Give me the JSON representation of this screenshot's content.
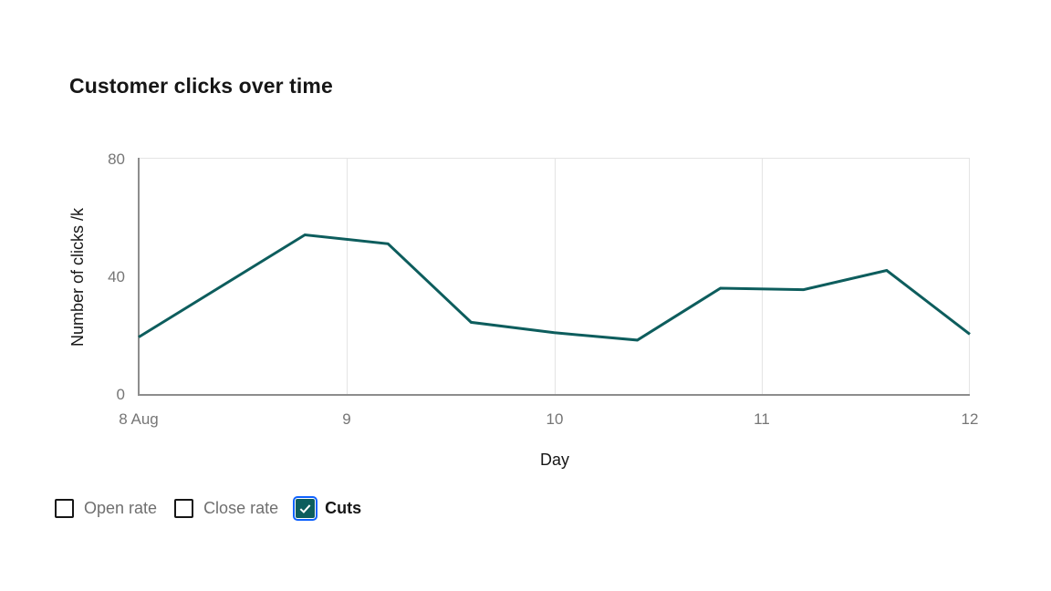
{
  "page": {
    "title": "Customer clicks over time"
  },
  "chart_data": {
    "type": "line",
    "title": "Customer clicks over time",
    "xlabel": "Day",
    "ylabel": "Number of clicks /k",
    "x": [
      8,
      8.8,
      9.2,
      9.6,
      10,
      10.4,
      10.8,
      11.2,
      11.6,
      12
    ],
    "series": [
      {
        "name": "Cuts",
        "values": [
          19.5,
          54,
          51,
          24.5,
          21,
          18.5,
          36,
          35.5,
          42,
          20.5
        ],
        "color": "#0d5d5d"
      }
    ],
    "xlim": [
      8,
      12
    ],
    "ylim": [
      0,
      80
    ],
    "x_ticks": [
      "8 Aug",
      "9",
      "10",
      "11",
      "12"
    ],
    "y_ticks": [
      "0",
      "40",
      "80"
    ],
    "grid": "vertical gridlines at each day plus top border; solid gray x and y axis lines",
    "legend_position": "bottom-left",
    "legend": [
      "Open rate",
      "Close rate",
      "Cuts"
    ]
  },
  "legend": {
    "items": [
      {
        "label": "Open rate",
        "checked": false
      },
      {
        "label": "Close rate",
        "checked": false
      },
      {
        "label": "Cuts",
        "checked": true,
        "focused": true
      }
    ]
  },
  "colors": {
    "series_teal": "#0d5d5d",
    "focus_blue": "#0f62fe",
    "text_primary": "#161616",
    "text_secondary": "#6f6f6f",
    "tick_gray": "#767676",
    "gridline": "#e4e4e4",
    "axis_line": "#8d8d8d"
  }
}
